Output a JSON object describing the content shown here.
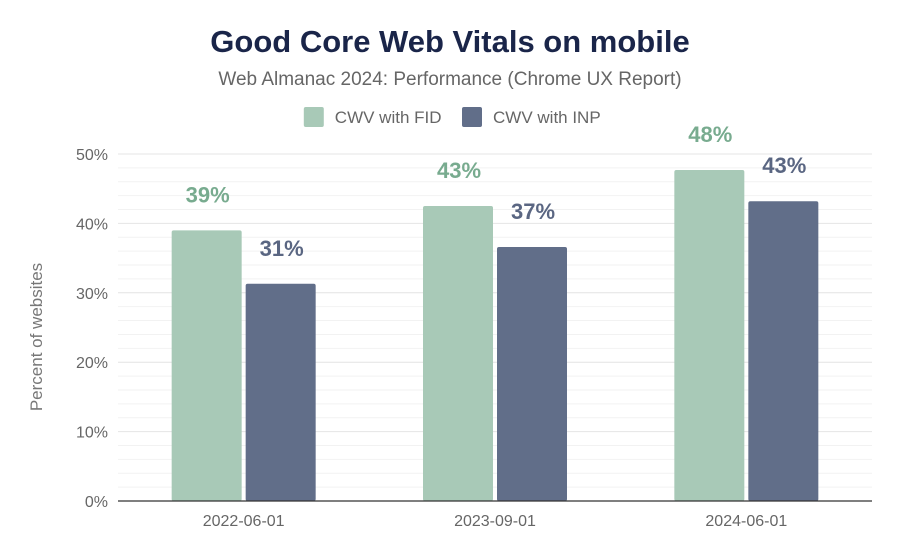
{
  "chart_data": {
    "type": "bar",
    "title": "Good Core Web Vitals on mobile",
    "subtitle": "Web Almanac 2024: Performance (Chrome UX Report)",
    "xlabel": "",
    "ylabel": "Percent of websites",
    "categories": [
      "2022-06-01",
      "2023-09-01",
      "2024-06-01"
    ],
    "series": [
      {
        "name": "CWV with FID",
        "values": [
          39,
          42.5,
          47.7
        ],
        "labels": [
          "39%",
          "43%",
          "48%"
        ],
        "color": "#a8c9b7",
        "label_color": "#78ab8f"
      },
      {
        "name": "CWV with INP",
        "values": [
          31.3,
          36.6,
          43.2
        ],
        "labels": [
          "31%",
          "37%",
          "43%"
        ],
        "color": "#616e89",
        "label_color": "#5a6682"
      }
    ],
    "ylim": [
      0,
      50
    ],
    "yticks": [
      0,
      10,
      20,
      30,
      40,
      50
    ],
    "ytick_labels": [
      "0%",
      "10%",
      "20%",
      "30%",
      "40%",
      "50%"
    ],
    "grid": true,
    "legend_position": "top-center"
  }
}
